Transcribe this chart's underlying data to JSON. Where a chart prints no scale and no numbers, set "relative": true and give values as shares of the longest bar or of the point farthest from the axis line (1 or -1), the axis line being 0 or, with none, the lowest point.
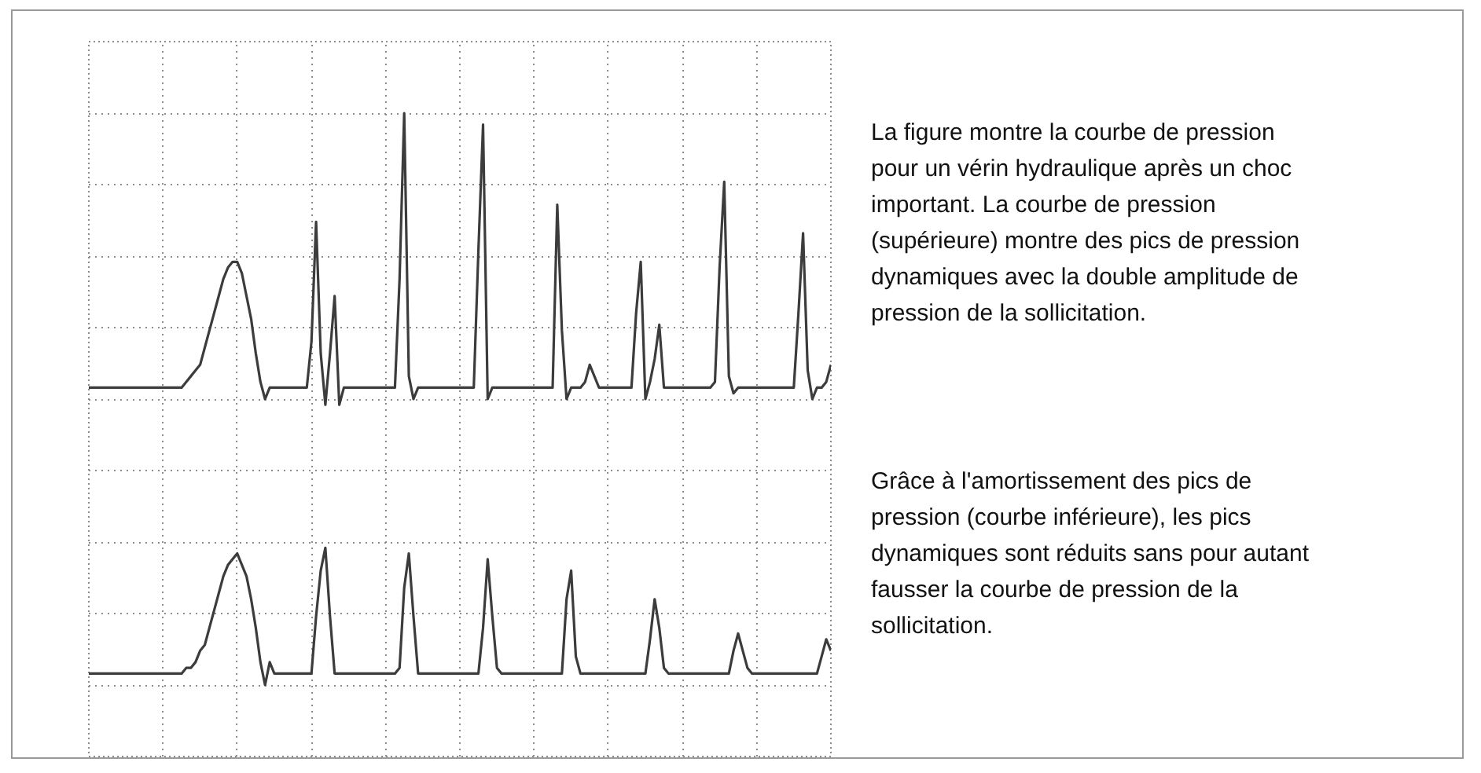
{
  "chart_data": {
    "type": "line",
    "relative": true,
    "grid": true,
    "tick_labels": false,
    "categories": [
      null,
      null,
      null,
      null,
      null,
      null,
      null,
      null,
      null,
      null,
      null,
      null,
      null,
      null,
      null,
      null,
      null,
      null,
      null,
      null,
      null,
      null,
      null,
      null,
      null,
      null,
      null,
      null,
      null,
      null,
      null,
      null,
      null,
      null,
      null,
      null,
      null,
      null,
      null,
      null,
      null,
      null,
      null,
      null,
      null,
      null,
      null,
      null,
      null,
      null,
      null,
      null,
      null,
      null,
      null,
      null,
      null,
      null,
      null,
      null,
      null,
      null,
      null,
      null,
      null,
      null,
      null,
      null,
      null,
      null,
      null,
      null,
      null,
      null,
      null,
      null,
      null,
      null,
      null,
      null,
      null,
      null,
      null,
      null,
      null,
      null,
      null,
      null,
      null,
      null,
      null,
      null,
      null,
      null,
      null,
      null,
      null,
      null,
      null,
      null,
      null,
      null,
      null,
      null,
      null,
      null,
      null,
      null,
      null,
      null,
      null,
      null,
      null,
      null,
      null,
      null,
      null,
      null,
      null,
      null,
      null,
      null,
      null,
      null,
      null,
      null,
      null,
      null,
      null,
      null,
      null,
      null,
      null,
      null,
      null,
      null,
      null,
      null,
      null,
      null,
      null,
      null,
      null,
      null,
      null,
      null,
      null,
      null,
      null,
      null,
      null,
      null,
      null,
      null,
      null,
      null,
      null,
      null,
      null,
      null,
      null
    ],
    "series": [
      {
        "color": "#3c3c3c",
        "values": [
          0.52,
          0.52,
          0.52,
          0.52,
          0.52,
          0.52,
          0.52,
          0.52,
          0.52,
          0.52,
          0.52,
          0.52,
          0.52,
          0.52,
          0.52,
          0.52,
          0.52,
          0.52,
          0.52,
          0.52,
          0.52,
          0.53,
          0.54,
          0.55,
          0.56,
          0.59,
          0.62,
          0.65,
          0.68,
          0.71,
          0.73,
          0.74,
          0.74,
          0.72,
          0.68,
          0.64,
          0.58,
          0.53,
          0.5,
          0.52,
          0.52,
          0.52,
          0.52,
          0.52,
          0.52,
          0.52,
          0.52,
          0.52,
          0.6,
          0.81,
          0.58,
          0.49,
          0.58,
          0.68,
          0.49,
          0.52,
          0.52,
          0.52,
          0.52,
          0.52,
          0.52,
          0.52,
          0.52,
          0.52,
          0.52,
          0.52,
          0.52,
          0.71,
          1.0,
          0.54,
          0.5,
          0.52,
          0.52,
          0.52,
          0.52,
          0.52,
          0.52,
          0.52,
          0.52,
          0.52,
          0.52,
          0.52,
          0.52,
          0.52,
          0.76,
          0.98,
          0.5,
          0.52,
          0.52,
          0.52,
          0.52,
          0.52,
          0.52,
          0.52,
          0.52,
          0.52,
          0.52,
          0.52,
          0.52,
          0.52,
          0.52,
          0.84,
          0.62,
          0.5,
          0.52,
          0.52,
          0.52,
          0.53,
          0.56,
          0.54,
          0.52,
          0.52,
          0.52,
          0.52,
          0.52,
          0.52,
          0.52,
          0.52,
          0.65,
          0.74,
          0.5,
          0.53,
          0.57,
          0.63,
          0.52,
          0.52,
          0.52,
          0.52,
          0.52,
          0.52,
          0.52,
          0.52,
          0.52,
          0.52,
          0.52,
          0.53,
          0.73,
          0.88,
          0.54,
          0.51,
          0.52,
          0.52,
          0.52,
          0.52,
          0.52,
          0.52,
          0.52,
          0.52,
          0.52,
          0.52,
          0.52,
          0.52,
          0.52,
          0.65,
          0.79,
          0.55,
          0.5,
          0.52,
          0.52,
          0.53,
          0.56
        ]
      },
      {
        "color": "#3c3c3c",
        "values": [
          0.02,
          0.02,
          0.02,
          0.02,
          0.02,
          0.02,
          0.02,
          0.02,
          0.02,
          0.02,
          0.02,
          0.02,
          0.02,
          0.02,
          0.02,
          0.02,
          0.02,
          0.02,
          0.02,
          0.02,
          0.02,
          0.03,
          0.03,
          0.04,
          0.06,
          0.07,
          0.1,
          0.13,
          0.16,
          0.19,
          0.21,
          0.22,
          0.23,
          0.21,
          0.19,
          0.15,
          0.1,
          0.04,
          0.0,
          0.04,
          0.02,
          0.02,
          0.02,
          0.02,
          0.02,
          0.02,
          0.02,
          0.02,
          0.02,
          0.12,
          0.2,
          0.24,
          0.12,
          0.02,
          0.02,
          0.02,
          0.02,
          0.02,
          0.02,
          0.02,
          0.02,
          0.02,
          0.02,
          0.02,
          0.02,
          0.02,
          0.02,
          0.03,
          0.17,
          0.23,
          0.12,
          0.02,
          0.02,
          0.02,
          0.02,
          0.02,
          0.02,
          0.02,
          0.02,
          0.02,
          0.02,
          0.02,
          0.02,
          0.02,
          0.02,
          0.1,
          0.22,
          0.12,
          0.03,
          0.02,
          0.02,
          0.02,
          0.02,
          0.02,
          0.02,
          0.02,
          0.02,
          0.02,
          0.02,
          0.02,
          0.02,
          0.02,
          0.02,
          0.15,
          0.2,
          0.05,
          0.02,
          0.02,
          0.02,
          0.02,
          0.02,
          0.02,
          0.02,
          0.02,
          0.02,
          0.02,
          0.02,
          0.02,
          0.02,
          0.02,
          0.02,
          0.08,
          0.15,
          0.1,
          0.03,
          0.02,
          0.02,
          0.02,
          0.02,
          0.02,
          0.02,
          0.02,
          0.02,
          0.02,
          0.02,
          0.02,
          0.02,
          0.02,
          0.02,
          0.06,
          0.09,
          0.06,
          0.03,
          0.02,
          0.02,
          0.02,
          0.02,
          0.02,
          0.02,
          0.02,
          0.02,
          0.02,
          0.02,
          0.02,
          0.02,
          0.02,
          0.02,
          0.02,
          0.05,
          0.08,
          0.06
        ]
      }
    ],
    "annotations": [
      "La figure montre la courbe de pression pour un vérin hydraulique après un choc important. La courbe de pression (supérieure) montre des pics de pression dynamiques avec la double amplitude de pression de la sollicitation.",
      "Grâce à l'amortissement des pics de pression (courbe inférieure), les pics dynamiques sont réduits sans pour autant fausser la courbe de pression de la sollicitation."
    ]
  }
}
